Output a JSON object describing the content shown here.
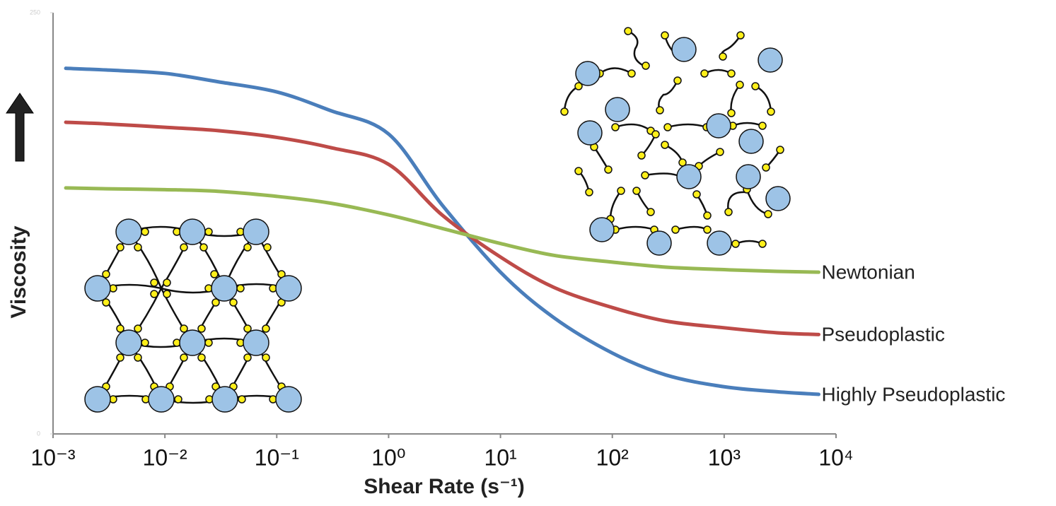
{
  "chart_data": {
    "type": "line",
    "ylabel": "Viscosity",
    "xlabel": "Shear Rate (s⁻¹)",
    "log_x": true,
    "x": [
      0.0013,
      0.003,
      0.01,
      0.03,
      0.1,
      0.3,
      1,
      3,
      10,
      30,
      100,
      300,
      1000,
      3000,
      7000
    ],
    "series": [
      {
        "name": "Highly Pseudoplastic",
        "color": "#4a7ebb",
        "values": [
          217,
          216,
          214,
          209,
          203,
          192,
          178,
          136,
          96,
          69,
          48,
          35,
          28,
          25,
          23.5
        ]
      },
      {
        "name": "Pseudoplastic",
        "color": "#be4b48",
        "values": [
          185,
          184,
          182,
          180,
          176,
          170,
          160,
          130,
          105,
          87,
          75,
          67,
          63,
          60,
          59
        ]
      },
      {
        "name": "Newtonian",
        "color": "#98b954",
        "values": [
          146,
          145.5,
          145,
          144,
          141,
          137,
          130,
          122,
          113,
          106,
          102,
          99,
          97.5,
          96.5,
          96
        ]
      }
    ],
    "xlim": [
      0.001,
      10000
    ],
    "xticks": [
      {
        "value": 0.001,
        "label": "10⁻³"
      },
      {
        "value": 0.01,
        "label": "10⁻²"
      },
      {
        "value": 0.1,
        "label": "10⁻¹"
      },
      {
        "value": 1,
        "label": "10⁰"
      },
      {
        "value": 10,
        "label": "10¹"
      },
      {
        "value": 100,
        "label": "10²"
      },
      {
        "value": 1000,
        "label": "10³"
      },
      {
        "value": 10000,
        "label": "10⁴"
      }
    ],
    "ylim": [
      0,
      250
    ],
    "yticks": [
      0,
      250
    ]
  }
}
